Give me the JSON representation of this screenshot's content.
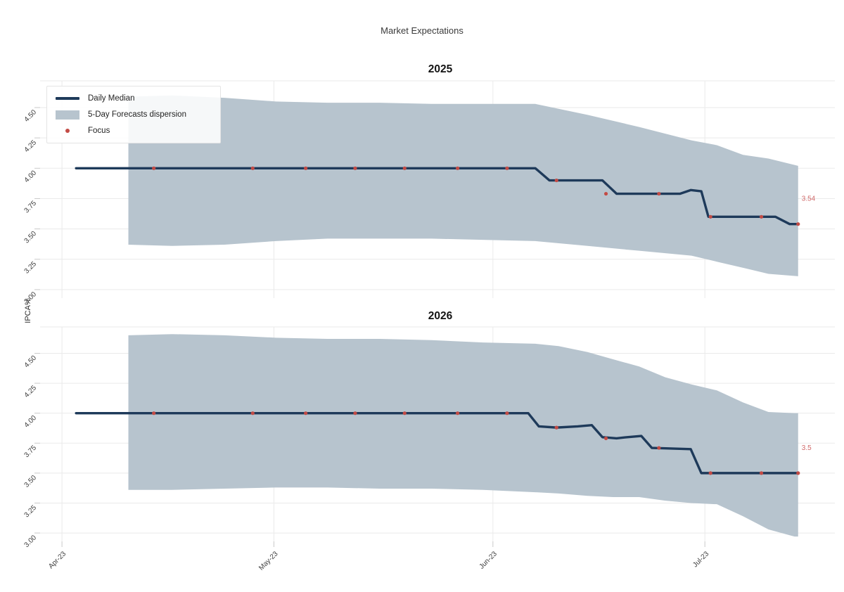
{
  "figure": {
    "title": "Market Expectations",
    "y_axis_label": "IPCA%",
    "colors": {
      "median_line": "#1e3a5a",
      "dispersion_band": "#b7c4ce",
      "focus_dot": "#c34b45",
      "endpoint_label": "#d06a6a",
      "grid": "#eaeaea",
      "tick_mark": "#c9c9c9",
      "tick_text": "#3d3d3d"
    }
  },
  "legend": {
    "items": [
      {
        "type": "line",
        "label": "Daily Median"
      },
      {
        "type": "band",
        "label": "5-Day Forecasts dispersion"
      },
      {
        "type": "dot",
        "label": "Focus"
      }
    ]
  },
  "chart_data": [
    {
      "type": "area",
      "title": "2025",
      "ylabel": "IPCA%",
      "x_unit": "days since 2023-04-01",
      "xlim": [
        -2.3,
        109.4
      ],
      "ylim": [
        2.93,
        4.72
      ],
      "grid": true,
      "xticks": [
        {
          "pos": 0,
          "label": "Apr-23"
        },
        {
          "pos": 30,
          "label": "May-23"
        },
        {
          "pos": 61,
          "label": "Jun-23"
        },
        {
          "pos": 91,
          "label": "Jul-23"
        }
      ],
      "yticks": [
        {
          "pos": 3.0,
          "label": "3.00"
        },
        {
          "pos": 3.25,
          "label": "3.25"
        },
        {
          "pos": 3.5,
          "label": "3.50"
        },
        {
          "pos": 3.75,
          "label": "3.75"
        },
        {
          "pos": 4.0,
          "label": "4.00"
        },
        {
          "pos": 4.25,
          "label": "4.25"
        },
        {
          "pos": 4.5,
          "label": "4.50"
        }
      ],
      "series": [
        {
          "name": "5-Day Forecasts dispersion",
          "type": "band",
          "x": [
            9.4,
            15.6,
            23,
            30.3,
            37.6,
            45,
            52.3,
            59.6,
            67,
            74.4,
            81.7,
            89.1,
            92.7,
            96.4,
            100,
            104.2
          ],
          "upper": [
            4.59,
            4.6,
            4.58,
            4.55,
            4.54,
            4.54,
            4.53,
            4.53,
            4.53,
            4.44,
            4.34,
            4.23,
            4.19,
            4.11,
            4.08,
            4.02
          ],
          "lower": [
            3.37,
            3.36,
            3.37,
            3.4,
            3.42,
            3.42,
            3.42,
            3.41,
            3.4,
            3.36,
            3.32,
            3.28,
            3.23,
            3.18,
            3.13,
            3.11
          ]
        },
        {
          "name": "Daily Median",
          "type": "line",
          "x": [
            2,
            67,
            69,
            76.5,
            78.5,
            87.5,
            89,
            90.5,
            91.5,
            101,
            103,
            104.2
          ],
          "y": [
            4.0,
            4.0,
            3.9,
            3.9,
            3.79,
            3.79,
            3.82,
            3.81,
            3.6,
            3.6,
            3.54,
            3.54
          ]
        },
        {
          "name": "Focus",
          "type": "scatter",
          "x": [
            13,
            27,
            34.5,
            41.5,
            48.5,
            56,
            63,
            70,
            77,
            84.5,
            91.8,
            99,
            104.2
          ],
          "y": [
            4.0,
            4.0,
            4.0,
            4.0,
            4.0,
            4.0,
            4.0,
            3.9,
            3.79,
            3.79,
            3.6,
            3.6,
            3.54
          ]
        }
      ],
      "endpoint_annotation": {
        "text": "3.54",
        "x": 104.2,
        "value": 3.54
      }
    },
    {
      "type": "area",
      "title": "2026",
      "ylabel": "IPCA%",
      "x_unit": "days since 2023-04-01",
      "xlim": [
        -2.3,
        109.4
      ],
      "ylim": [
        2.93,
        4.72
      ],
      "grid": true,
      "xticks": [
        {
          "pos": 0,
          "label": "Apr-23"
        },
        {
          "pos": 30,
          "label": "May-23"
        },
        {
          "pos": 61,
          "label": "Jun-23"
        },
        {
          "pos": 91,
          "label": "Jul-23"
        }
      ],
      "yticks": [
        {
          "pos": 3.0,
          "label": "3.00"
        },
        {
          "pos": 3.25,
          "label": "3.25"
        },
        {
          "pos": 3.5,
          "label": "3.50"
        },
        {
          "pos": 3.75,
          "label": "3.75"
        },
        {
          "pos": 4.0,
          "label": "4.00"
        },
        {
          "pos": 4.25,
          "label": "4.25"
        },
        {
          "pos": 4.5,
          "label": "4.50"
        }
      ],
      "series": [
        {
          "name": "5-Day Forecasts dispersion",
          "type": "band",
          "x": [
            9.4,
            15.6,
            23,
            30.3,
            37.6,
            45,
            52.3,
            59.6,
            67,
            70.3,
            74.4,
            78,
            81.7,
            85.4,
            89.1,
            92.7,
            96.4,
            100,
            103.7,
            104.2
          ],
          "upper": [
            4.65,
            4.66,
            4.65,
            4.63,
            4.62,
            4.62,
            4.61,
            4.59,
            4.58,
            4.56,
            4.51,
            4.45,
            4.39,
            4.3,
            4.24,
            4.19,
            4.09,
            4.01,
            4.0,
            4.0
          ],
          "lower": [
            3.36,
            3.36,
            3.37,
            3.38,
            3.38,
            3.37,
            3.37,
            3.36,
            3.34,
            3.33,
            3.31,
            3.3,
            3.3,
            3.27,
            3.25,
            3.24,
            3.14,
            3.03,
            2.97,
            2.97
          ]
        },
        {
          "name": "Daily Median",
          "type": "line",
          "x": [
            2,
            66,
            67.5,
            70,
            73,
            75,
            76.5,
            78.5,
            80,
            82,
            83.5,
            89,
            90.5,
            104.2
          ],
          "y": [
            4.0,
            4.0,
            3.89,
            3.88,
            3.89,
            3.9,
            3.8,
            3.79,
            3.8,
            3.81,
            3.71,
            3.7,
            3.5,
            3.5
          ]
        },
        {
          "name": "Focus",
          "type": "scatter",
          "x": [
            13,
            27,
            34.5,
            41.5,
            48.5,
            56,
            63,
            70,
            77,
            84.5,
            91.8,
            99,
            104.2
          ],
          "y": [
            4.0,
            4.0,
            4.0,
            4.0,
            4.0,
            4.0,
            4.0,
            3.88,
            3.79,
            3.71,
            3.5,
            3.5,
            3.5
          ]
        }
      ],
      "endpoint_annotation": {
        "text": "3.5",
        "x": 104.2,
        "value": 3.5
      }
    }
  ]
}
